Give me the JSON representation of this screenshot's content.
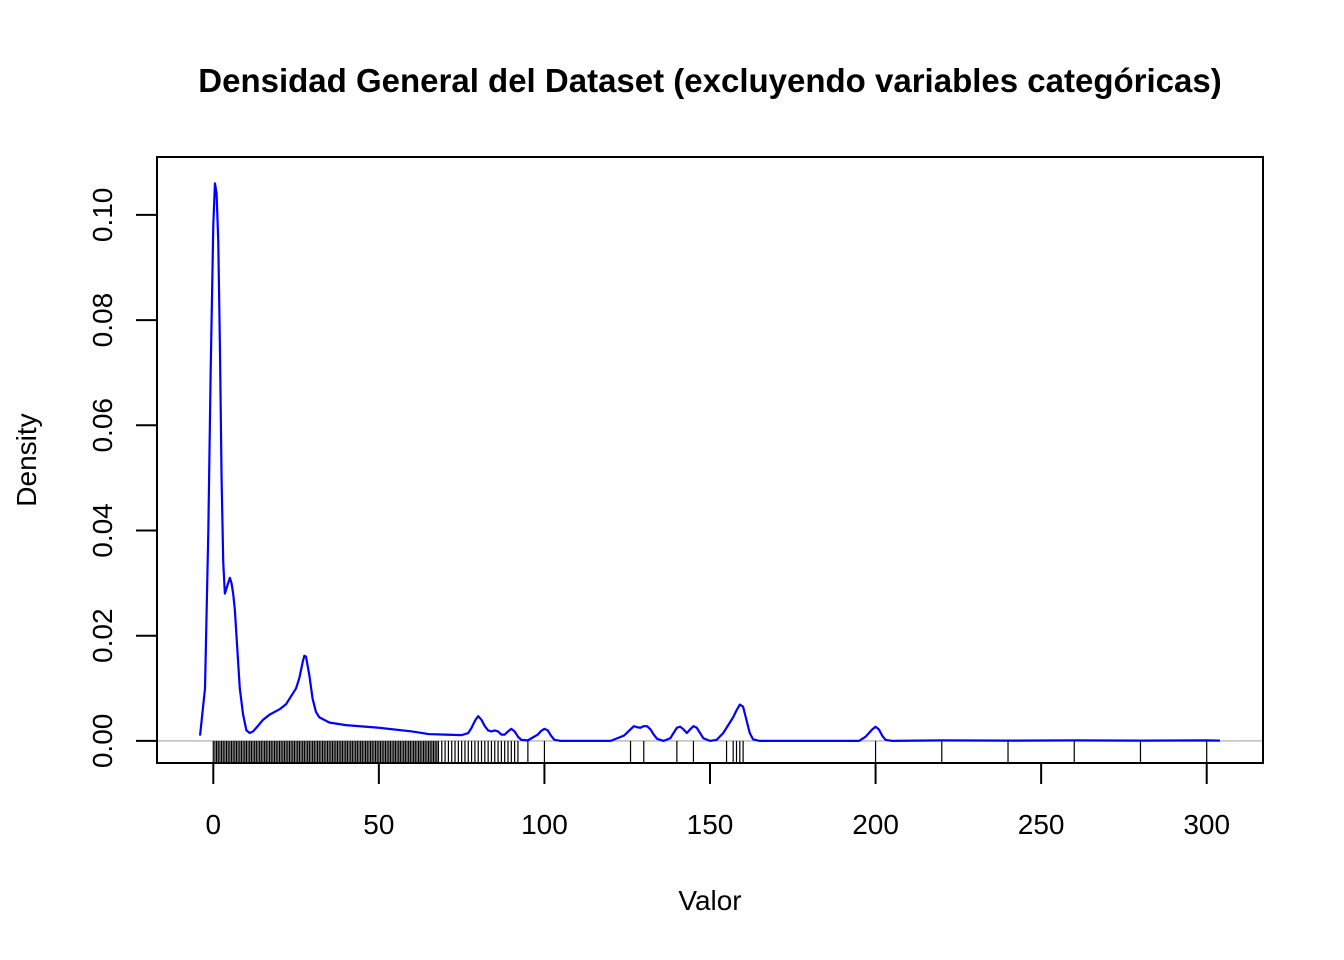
{
  "chart_data": {
    "type": "line",
    "title": "Densidad General del Dataset (excluyendo variables categóricas)",
    "xlabel": "Valor",
    "ylabel": "Density",
    "xlim": [
      -17,
      317
    ],
    "ylim": [
      -0.0042,
      0.111
    ],
    "x_ticks": [
      0,
      50,
      100,
      150,
      200,
      250,
      300
    ],
    "y_ticks": [
      0.0,
      0.02,
      0.04,
      0.06,
      0.08,
      0.1
    ],
    "x_tick_labels": [
      "0",
      "50",
      "100",
      "150",
      "200",
      "250",
      "300"
    ],
    "y_tick_labels": [
      "0.00",
      "0.02",
      "0.04",
      "0.06",
      "0.08",
      "0.10"
    ],
    "grid": false,
    "colors": {
      "density": "#0000ff",
      "baseline": "#bebebe",
      "rug": "#000000"
    },
    "series": [
      {
        "x": [
          -4,
          -2.5,
          -1.5,
          -0.8,
          0,
          0.5,
          1,
          1.5,
          2,
          2.5,
          3,
          3.5,
          4,
          4.5,
          5,
          5.5,
          6,
          6.5,
          7,
          7.5,
          8,
          9,
          10,
          11,
          12,
          13,
          15,
          17,
          20,
          22,
          24,
          25,
          26,
          27,
          27.5,
          28,
          29,
          30,
          31,
          32,
          35,
          40,
          50,
          60,
          65,
          70,
          75,
          77,
          78,
          79,
          80,
          81,
          82,
          83,
          84,
          85,
          86,
          87,
          88,
          89,
          90,
          91,
          92,
          93,
          95,
          98,
          99,
          100,
          101,
          102,
          103,
          105,
          110,
          120,
          124,
          126,
          127,
          128,
          129,
          130,
          131,
          132,
          133,
          134,
          136,
          138,
          139,
          140,
          141,
          142,
          143,
          144,
          145,
          146,
          147,
          148,
          150,
          152,
          154,
          155,
          156,
          157,
          158,
          159,
          160,
          161,
          162,
          163,
          165,
          180,
          195,
          197,
          199,
          200,
          201,
          202,
          203,
          205,
          220,
          240,
          260,
          280,
          300,
          304
        ],
        "y": [
          0.001,
          0.01,
          0.04,
          0.07,
          0.098,
          0.106,
          0.104,
          0.095,
          0.075,
          0.05,
          0.034,
          0.028,
          0.029,
          0.03,
          0.031,
          0.03,
          0.028,
          0.025,
          0.02,
          0.015,
          0.01,
          0.005,
          0.002,
          0.0015,
          0.0018,
          0.0025,
          0.004,
          0.005,
          0.006,
          0.007,
          0.009,
          0.01,
          0.012,
          0.015,
          0.0162,
          0.016,
          0.0125,
          0.008,
          0.0055,
          0.0045,
          0.0035,
          0.003,
          0.0025,
          0.0018,
          0.0013,
          0.0012,
          0.0011,
          0.0015,
          0.0025,
          0.0038,
          0.0047,
          0.004,
          0.0028,
          0.002,
          0.0018,
          0.002,
          0.0018,
          0.0012,
          0.0012,
          0.0018,
          0.0023,
          0.0018,
          0.0008,
          0.0002,
          0.0001,
          0.0012,
          0.0019,
          0.0023,
          0.002,
          0.001,
          0.0002,
          0.0,
          0.0,
          0.0,
          0.001,
          0.0022,
          0.0028,
          0.0026,
          0.0025,
          0.0028,
          0.0028,
          0.0022,
          0.0012,
          0.0004,
          0.0,
          0.0005,
          0.0015,
          0.0025,
          0.0027,
          0.0022,
          0.0015,
          0.0022,
          0.0028,
          0.0025,
          0.0015,
          0.0005,
          0.0,
          0.0002,
          0.0015,
          0.0025,
          0.0035,
          0.0045,
          0.0058,
          0.0069,
          0.0065,
          0.004,
          0.0015,
          0.0003,
          0.0,
          0.0,
          0.0,
          0.0008,
          0.0022,
          0.0027,
          0.0022,
          0.001,
          0.0002,
          0.0,
          0.0001,
          5e-05,
          0.0001,
          5e-05,
          0.0001,
          5e-05
        ]
      }
    ],
    "rug": [
      0,
      0.5,
      1,
      1.5,
      2,
      2.5,
      3,
      3.5,
      4,
      4.5,
      5,
      5.5,
      6,
      6.5,
      7,
      7.5,
      8,
      8.5,
      9,
      9.5,
      10,
      10.5,
      11,
      11.5,
      12,
      12.5,
      13,
      13.5,
      14,
      14.5,
      15,
      15.5,
      16,
      16.5,
      17,
      17.5,
      18,
      18.5,
      19,
      19.5,
      20,
      20.5,
      21,
      21.5,
      22,
      22.5,
      23,
      23.5,
      24,
      24.5,
      25,
      25.5,
      26,
      26.5,
      27,
      27.5,
      28,
      28.5,
      29,
      29.5,
      30,
      30.5,
      31,
      31.5,
      32,
      32.5,
      33,
      33.5,
      34,
      34.5,
      35,
      35.5,
      36,
      36.5,
      37,
      37.5,
      38,
      38.5,
      39,
      39.5,
      40,
      40.5,
      41,
      41.5,
      42,
      42.5,
      43,
      43.5,
      44,
      44.5,
      45,
      45.5,
      46,
      46.5,
      47,
      47.5,
      48,
      48.5,
      49,
      49.5,
      50,
      50.5,
      51,
      51.5,
      52,
      52.5,
      53,
      53.5,
      54,
      54.5,
      55,
      55.5,
      56,
      56.5,
      57,
      57.5,
      58,
      58.5,
      59,
      59.5,
      60,
      60.5,
      61,
      61.5,
      62,
      62.5,
      63,
      63.5,
      64,
      64.5,
      65,
      65.5,
      66,
      66.5,
      67,
      67.5,
      68,
      69,
      70,
      71,
      72,
      73,
      74,
      75,
      76,
      77,
      78,
      79,
      80,
      81,
      82,
      83,
      84,
      85,
      86,
      87,
      88,
      89,
      90,
      91,
      92,
      95,
      100,
      126,
      130,
      140,
      145,
      155,
      157,
      158,
      159,
      160,
      200,
      220,
      240,
      260,
      280,
      300
    ]
  }
}
